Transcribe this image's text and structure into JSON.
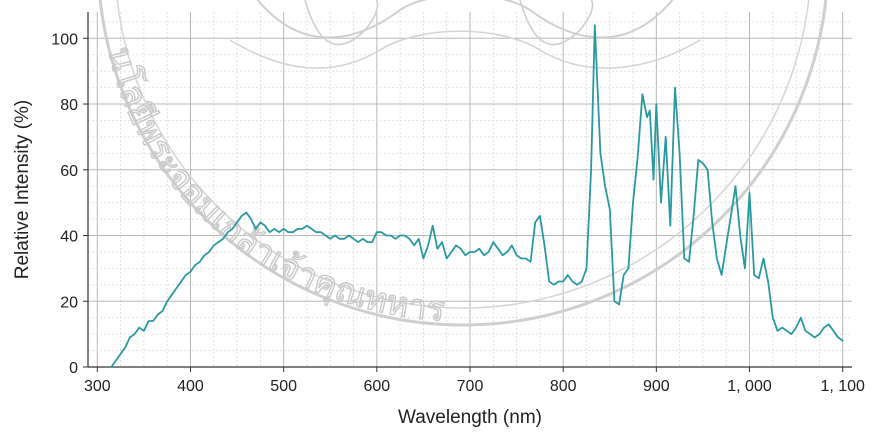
{
  "chart_data": {
    "type": "line",
    "xlabel": "Wavelength (nm)",
    "ylabel": "Relative Intensity (%)",
    "xlim": [
      290,
      1110
    ],
    "ylim": [
      0,
      108
    ],
    "x_ticks": [
      300,
      400,
      500,
      600,
      700,
      800,
      900,
      1000,
      1100
    ],
    "x_tick_labels": [
      "300",
      "400",
      "500",
      "600",
      "700",
      "800",
      "900",
      "1, 000",
      "1, 100"
    ],
    "y_ticks": [
      0,
      20,
      40,
      60,
      80,
      100
    ],
    "y_tick_labels": [
      "0",
      "20",
      "40",
      "60",
      "80",
      "100"
    ],
    "grid": true,
    "line_color": "#2a9aa0",
    "series": [
      {
        "x": [
          315,
          320,
          325,
          330,
          335,
          340,
          345,
          350,
          355,
          360,
          365,
          370,
          375,
          380,
          385,
          390,
          395,
          400,
          405,
          410,
          415,
          420,
          425,
          430,
          435,
          440,
          445,
          450,
          455,
          460,
          465,
          470,
          475,
          480,
          485,
          490,
          495,
          500,
          505,
          510,
          515,
          520,
          525,
          530,
          535,
          540,
          545,
          550,
          555,
          560,
          565,
          570,
          575,
          580,
          585,
          590,
          595,
          600,
          605,
          610,
          615,
          620,
          625,
          630,
          635,
          640,
          645,
          650,
          655,
          660,
          665,
          670,
          675,
          680,
          685,
          690,
          695,
          700,
          705,
          710,
          715,
          720,
          725,
          730,
          735,
          740,
          745,
          750,
          755,
          760,
          765,
          770,
          775,
          780,
          785,
          790,
          795,
          800,
          805,
          810,
          815,
          820,
          825,
          830,
          834,
          840,
          845,
          850,
          855,
          860,
          865,
          870,
          875,
          880,
          885,
          890,
          893,
          897,
          900,
          905,
          910,
          915,
          920,
          925,
          930,
          935,
          940,
          945,
          950,
          955,
          960,
          965,
          970,
          975,
          980,
          985,
          990,
          995,
          1000,
          1005,
          1010,
          1015,
          1020,
          1025,
          1030,
          1035,
          1040,
          1045,
          1050,
          1055,
          1060,
          1065,
          1070,
          1075,
          1080,
          1085,
          1090,
          1095,
          1100
        ],
        "y": [
          0,
          2,
          4,
          6,
          9,
          10,
          12,
          11,
          14,
          14,
          16,
          17,
          20,
          22,
          24,
          26,
          28,
          29,
          31,
          32,
          34,
          35,
          37,
          38,
          39,
          41,
          42,
          44,
          46,
          47,
          45,
          42,
          44,
          43,
          41,
          42,
          41,
          42,
          41,
          41,
          42,
          42,
          43,
          42,
          41,
          41,
          40,
          39,
          40,
          39,
          39,
          40,
          39,
          38,
          39,
          38,
          38,
          41,
          41,
          40,
          40,
          39,
          40,
          40,
          39,
          37,
          39,
          33,
          37,
          43,
          36,
          38,
          33,
          35,
          37,
          36,
          34,
          35,
          35,
          36,
          34,
          35,
          38,
          36,
          34,
          35,
          37,
          34,
          33,
          33,
          32,
          44,
          46,
          37,
          26,
          25,
          26,
          26,
          28,
          26,
          25,
          26,
          30,
          60,
          104,
          65,
          55,
          48,
          20,
          19,
          28,
          30,
          50,
          64,
          83,
          76,
          78,
          57,
          80,
          50,
          70,
          43,
          85,
          65,
          33,
          32,
          46,
          63,
          62,
          60,
          44,
          33,
          28,
          37,
          46,
          55,
          40,
          30,
          53,
          28,
          27,
          33,
          26,
          15,
          11,
          12,
          11,
          10,
          12,
          15,
          11,
          10,
          9,
          10,
          12,
          13,
          11,
          9,
          8
        ]
      }
    ]
  },
  "watermark": {
    "text": "นโลยีพระจอมเกล้าเจ้าคุณทหาร",
    "kind": "seal"
  }
}
